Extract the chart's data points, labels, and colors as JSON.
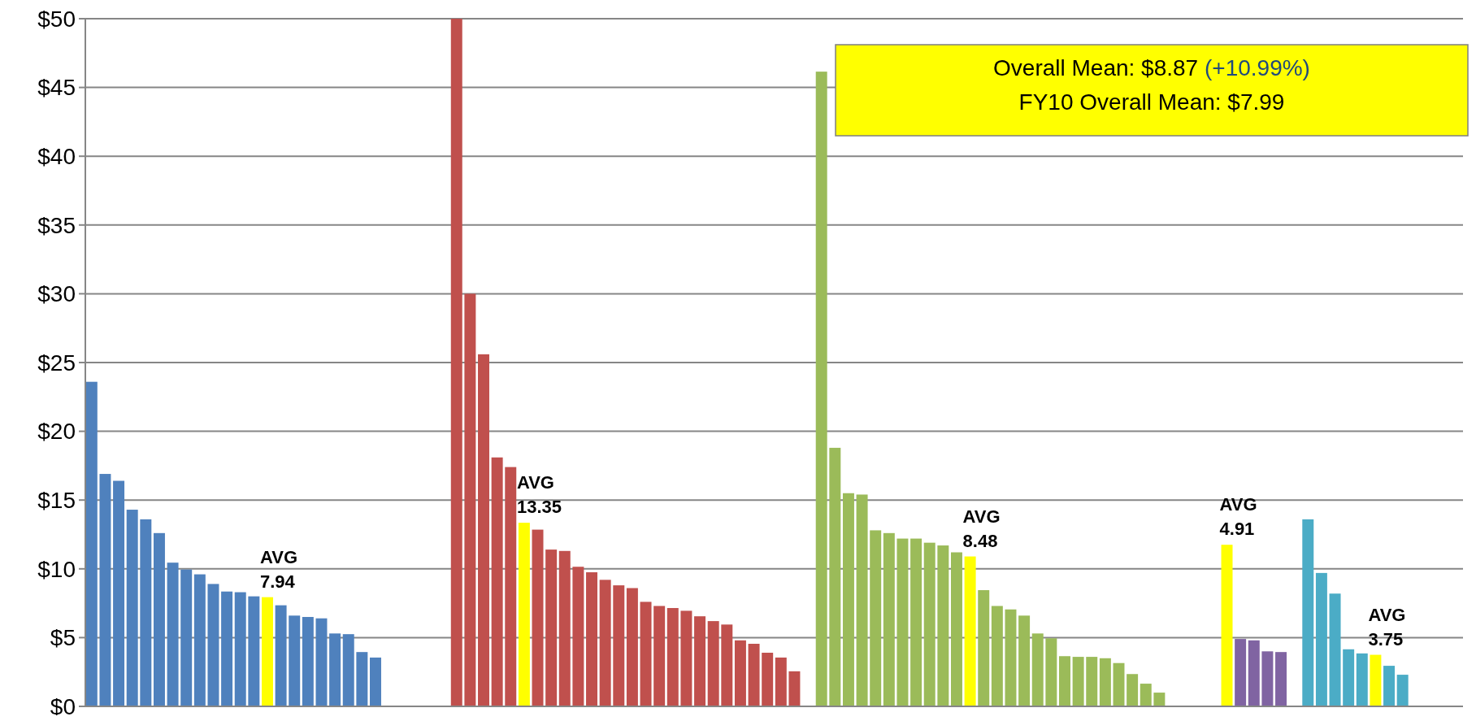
{
  "chart_data": {
    "type": "bar",
    "categories": [
      null,
      null,
      null,
      null,
      null,
      null,
      null,
      null,
      null,
      null,
      null,
      null,
      null,
      null,
      null,
      null,
      null,
      null,
      null,
      null,
      null,
      null,
      null,
      null,
      null,
      null,
      null,
      null,
      null,
      null,
      null,
      null,
      null,
      null,
      null,
      null,
      null,
      null,
      null,
      null,
      null,
      null,
      null,
      null,
      null,
      null,
      null,
      null,
      null,
      null,
      null,
      null,
      null,
      null,
      null,
      null,
      null,
      null,
      null,
      null,
      null,
      null,
      null,
      null,
      null,
      null,
      null,
      null,
      null,
      null,
      null,
      null,
      null,
      null,
      null,
      null,
      null,
      null,
      null,
      null,
      null,
      null,
      null,
      null,
      null,
      null,
      null,
      null,
      null,
      null,
      null,
      null,
      null,
      null,
      null,
      null,
      null,
      null,
      null,
      null,
      null,
      null
    ],
    "values": [
      23.6,
      16.9,
      16.4,
      14.3,
      13.6,
      12.6,
      10.45,
      9.95,
      9.6,
      8.9,
      8.35,
      8.3,
      8.0,
      7.94,
      7.35,
      6.6,
      6.5,
      6.4,
      5.3,
      5.25,
      3.95,
      3.55,
      null,
      null,
      null,
      null,
      null,
      50,
      30,
      25.6,
      18.1,
      17.4,
      13.35,
      12.85,
      11.4,
      11.3,
      10.15,
      9.75,
      9.2,
      8.8,
      8.6,
      7.6,
      7.3,
      7.15,
      6.95,
      6.55,
      6.2,
      5.95,
      4.8,
      4.55,
      3.9,
      3.55,
      2.55,
      null,
      46.15,
      18.8,
      15.5,
      15.4,
      12.8,
      12.6,
      12.2,
      12.2,
      11.9,
      11.7,
      11.2,
      10.9,
      8.45,
      7.3,
      7.05,
      6.6,
      5.3,
      4.95,
      3.65,
      3.6,
      3.6,
      3.5,
      3.15,
      2.35,
      1.65,
      1.0,
      null,
      null,
      null,
      null,
      11.75,
      4.9,
      4.8,
      4.0,
      3.95,
      null,
      13.6,
      9.7,
      8.2,
      4.15,
      3.85,
      3.75,
      2.95,
      2.3,
      null,
      null,
      null,
      null
    ],
    "colors": [
      "#4f81bd",
      "#4f81bd",
      "#4f81bd",
      "#4f81bd",
      "#4f81bd",
      "#4f81bd",
      "#4f81bd",
      "#4f81bd",
      "#4f81bd",
      "#4f81bd",
      "#4f81bd",
      "#4f81bd",
      "#4f81bd",
      "#ffff00",
      "#4f81bd",
      "#4f81bd",
      "#4f81bd",
      "#4f81bd",
      "#4f81bd",
      "#4f81bd",
      "#4f81bd",
      "#4f81bd",
      null,
      null,
      null,
      null,
      null,
      "#c0504d",
      "#c0504d",
      "#c0504d",
      "#c0504d",
      "#c0504d",
      "#ffff00",
      "#c0504d",
      "#c0504d",
      "#c0504d",
      "#c0504d",
      "#c0504d",
      "#c0504d",
      "#c0504d",
      "#c0504d",
      "#c0504d",
      "#c0504d",
      "#c0504d",
      "#c0504d",
      "#c0504d",
      "#c0504d",
      "#c0504d",
      "#c0504d",
      "#c0504d",
      "#c0504d",
      "#c0504d",
      "#c0504d",
      null,
      "#9bbb59",
      "#9bbb59",
      "#9bbb59",
      "#9bbb59",
      "#9bbb59",
      "#9bbb59",
      "#9bbb59",
      "#9bbb59",
      "#9bbb59",
      "#9bbb59",
      "#9bbb59",
      "#ffff00",
      "#9bbb59",
      "#9bbb59",
      "#9bbb59",
      "#9bbb59",
      "#9bbb59",
      "#9bbb59",
      "#9bbb59",
      "#9bbb59",
      "#9bbb59",
      "#9bbb59",
      "#9bbb59",
      "#9bbb59",
      "#9bbb59",
      "#9bbb59",
      null,
      null,
      null,
      null,
      "#ffff00",
      "#8064a2",
      "#8064a2",
      "#8064a2",
      "#8064a2",
      null,
      "#4bacc6",
      "#4bacc6",
      "#4bacc6",
      "#4bacc6",
      "#4bacc6",
      "#ffff00",
      "#4bacc6",
      "#4bacc6",
      null,
      null,
      null,
      null
    ],
    "value_labels": [
      null,
      null,
      null,
      null,
      null,
      null,
      null,
      null,
      null,
      null,
      null,
      null,
      null,
      "AVG 7.94",
      null,
      null,
      null,
      null,
      null,
      null,
      null,
      null,
      null,
      null,
      null,
      null,
      null,
      null,
      null,
      null,
      null,
      null,
      "AVG 13.35",
      null,
      null,
      null,
      null,
      null,
      null,
      null,
      null,
      null,
      null,
      null,
      null,
      null,
      null,
      null,
      null,
      null,
      null,
      null,
      null,
      null,
      null,
      null,
      null,
      null,
      null,
      null,
      null,
      null,
      null,
      null,
      null,
      "AVG 8.48",
      null,
      null,
      null,
      null,
      null,
      null,
      null,
      null,
      null,
      null,
      null,
      null,
      null,
      null,
      null,
      null,
      null,
      null,
      "AVG 4.91",
      null,
      null,
      null,
      null,
      null,
      null,
      null,
      null,
      null,
      null,
      "AVG 3.75",
      null,
      null,
      null,
      null,
      null,
      null
    ],
    "ylim": [
      0,
      50
    ],
    "yticks": [
      {
        "value": 0,
        "label": "$0"
      },
      {
        "value": 5,
        "label": "$5"
      },
      {
        "value": 10,
        "label": "$10"
      },
      {
        "value": 15,
        "label": "$15"
      },
      {
        "value": 20,
        "label": "$20"
      },
      {
        "value": 25,
        "label": "$25"
      },
      {
        "value": 30,
        "label": "$30"
      },
      {
        "value": 35,
        "label": "$35"
      },
      {
        "value": 40,
        "label": "$40"
      },
      {
        "value": 45,
        "label": "$45"
      },
      {
        "value": 50,
        "label": "$50"
      }
    ],
    "grid": "y",
    "annotations": [
      "Overall Mean: $8.87 (+10.99%)",
      "FY10 Overall Mean: $7.99"
    ]
  }
}
